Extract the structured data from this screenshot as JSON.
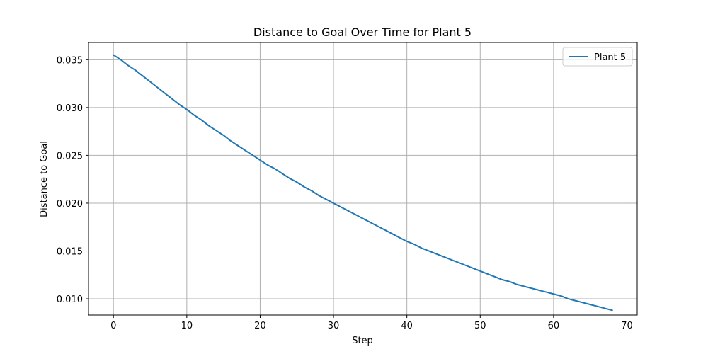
{
  "chart_data": {
    "type": "line",
    "title": "Distance to Goal Over Time for Plant 5",
    "xlabel": "Step",
    "ylabel": "Distance to Goal",
    "xlim": [
      -3.4,
      71.4
    ],
    "ylim": [
      0.0083,
      0.0368
    ],
    "xticks": [
      0,
      10,
      20,
      30,
      40,
      50,
      60,
      70
    ],
    "xtick_labels": [
      "0",
      "10",
      "20",
      "30",
      "40",
      "50",
      "60",
      "70"
    ],
    "yticks": [
      0.01,
      0.015,
      0.02,
      0.025,
      0.03,
      0.035
    ],
    "ytick_labels": [
      "0.010",
      "0.015",
      "0.020",
      "0.025",
      "0.030",
      "0.035"
    ],
    "grid": true,
    "legend_position": "upper-right",
    "series": [
      {
        "name": "Plant 5",
        "color": "#1f77b4",
        "x": [
          0,
          1,
          2,
          3,
          4,
          5,
          6,
          7,
          8,
          9,
          10,
          11,
          12,
          13,
          14,
          15,
          16,
          17,
          18,
          19,
          20,
          21,
          22,
          23,
          24,
          25,
          26,
          27,
          28,
          29,
          30,
          31,
          32,
          33,
          34,
          35,
          36,
          37,
          38,
          39,
          40,
          41,
          42,
          43,
          44,
          45,
          46,
          47,
          48,
          49,
          50,
          51,
          52,
          53,
          54,
          55,
          56,
          57,
          58,
          59,
          60,
          61,
          62,
          63,
          64,
          65,
          66,
          67,
          68
        ],
        "y": [
          0.0355,
          0.035,
          0.0344,
          0.0339,
          0.0333,
          0.0327,
          0.0321,
          0.0315,
          0.0309,
          0.0303,
          0.0298,
          0.0292,
          0.0287,
          0.0281,
          0.0276,
          0.0271,
          0.0265,
          0.026,
          0.0255,
          0.025,
          0.0245,
          0.024,
          0.0236,
          0.0231,
          0.0226,
          0.0222,
          0.0217,
          0.0213,
          0.0208,
          0.0204,
          0.02,
          0.0196,
          0.0192,
          0.0188,
          0.0184,
          0.018,
          0.0176,
          0.0172,
          0.0168,
          0.0164,
          0.016,
          0.0157,
          0.0153,
          0.015,
          0.0147,
          0.0144,
          0.0141,
          0.0138,
          0.0135,
          0.0132,
          0.0129,
          0.0126,
          0.0123,
          0.012,
          0.0118,
          0.0115,
          0.0113,
          0.0111,
          0.0109,
          0.0107,
          0.0105,
          0.0103,
          0.01,
          0.0098,
          0.0096,
          0.0094,
          0.0092,
          0.009,
          0.0088
        ]
      }
    ]
  }
}
